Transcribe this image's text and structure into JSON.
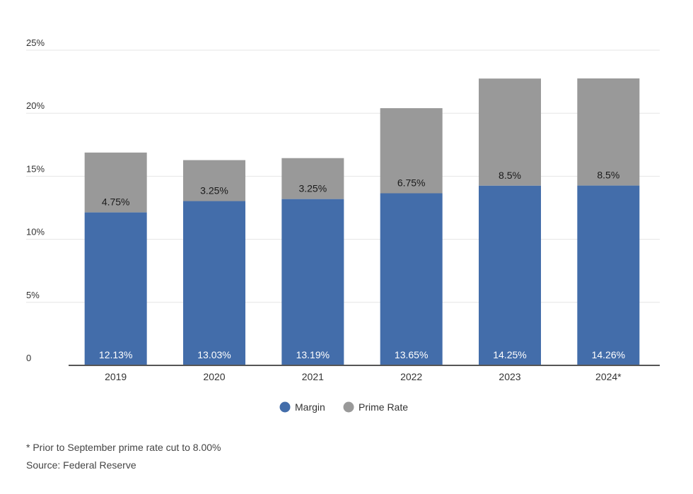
{
  "chart_data": {
    "type": "bar",
    "stacked": true,
    "categories": [
      "2019",
      "2020",
      "2021",
      "2022",
      "2023",
      "2024*"
    ],
    "series": [
      {
        "name": "Margin",
        "color": "#436daa",
        "values": [
          12.13,
          13.03,
          13.19,
          13.65,
          14.25,
          14.26
        ],
        "labels": [
          "12.13%",
          "13.03%",
          "13.19%",
          "13.65%",
          "14.25%",
          "14.26%"
        ]
      },
      {
        "name": "Prime Rate",
        "color": "#999999",
        "values": [
          4.75,
          3.25,
          3.25,
          6.75,
          8.5,
          8.5
        ],
        "labels": [
          "4.75%",
          "3.25%",
          "3.25%",
          "6.75%",
          "8.5%",
          "8.5%"
        ]
      }
    ],
    "y_ticks": [
      0,
      5,
      10,
      15,
      20,
      25
    ],
    "y_tick_labels": [
      "0",
      "5%",
      "10%",
      "15%",
      "20%",
      "25%"
    ],
    "ylim": [
      0,
      25
    ],
    "grid": true,
    "legend_position": "bottom-center",
    "title": "",
    "xlabel": "",
    "ylabel": ""
  },
  "footnotes": {
    "note": "* Prior to September prime rate cut to 8.00%",
    "source": "Source: Federal Reserve"
  }
}
